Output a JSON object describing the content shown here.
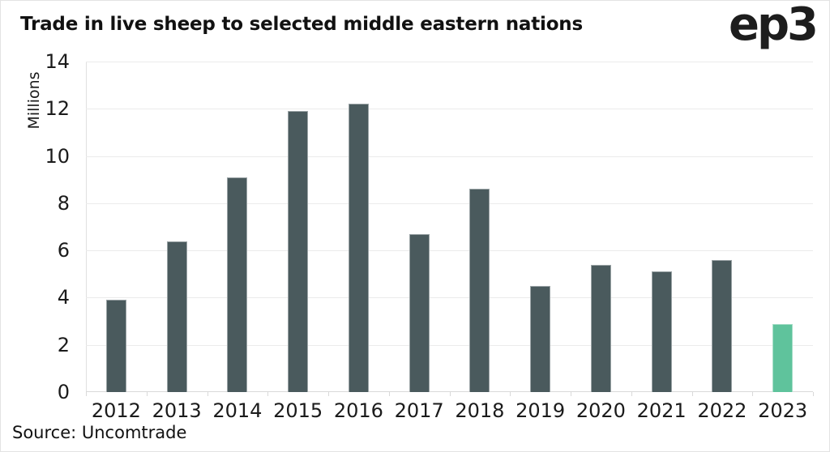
{
  "page": {
    "title": "Trade in live sheep to selected middle eastern nations",
    "logo_text": "ep3",
    "source": "Source: Uncomtrade"
  },
  "colors": {
    "bar_default": "#4a5a5d",
    "bar_highlight": "#5fc39c",
    "gridline": "#ebebeb",
    "axis_line": "#d9d9d9",
    "text": "#1b1b1b",
    "frame_border": "#e3e3e3"
  },
  "chart_data": {
    "type": "bar",
    "title": "Trade in live sheep to selected middle eastern nations",
    "xlabel": "",
    "ylabel": "Millions",
    "ylim": [
      0,
      14
    ],
    "yticks": [
      0,
      2,
      4,
      6,
      8,
      10,
      12,
      14
    ],
    "grid": true,
    "legend": "none",
    "categories": [
      "2012",
      "2013",
      "2014",
      "2015",
      "2016",
      "2017",
      "2018",
      "2019",
      "2020",
      "2021",
      "2022",
      "2023"
    ],
    "values": [
      3.9,
      6.4,
      9.1,
      11.9,
      12.2,
      6.7,
      8.6,
      4.5,
      5.4,
      5.1,
      5.6,
      2.9
    ],
    "highlight_index": 11,
    "source": "Source: Uncomtrade"
  }
}
